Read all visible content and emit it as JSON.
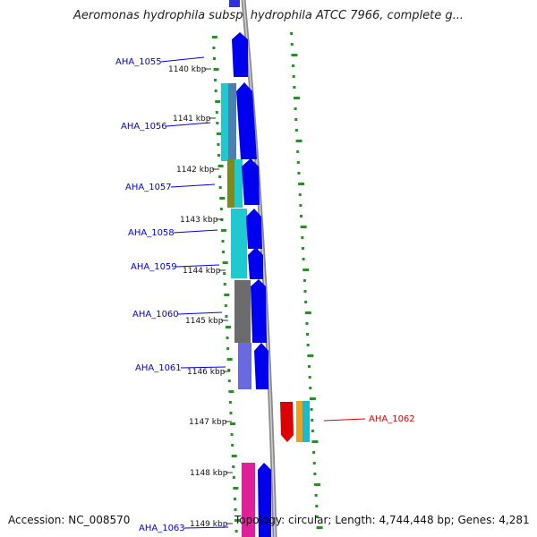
{
  "title": "Aeromonas hydrophila subsp. hydrophila ATCC 7966, complete g...",
  "footer": {
    "accession": "Accession: NC_008570",
    "summary": "Topology: circular; Length: 4,744,448 bp; Genes: 4,281"
  },
  "ticks": [
    {
      "label": "1140 kbp"
    },
    {
      "label": "1141 kbp"
    },
    {
      "label": "1142 kbp"
    },
    {
      "label": "1143 kbp"
    },
    {
      "label": "1144 kbp"
    },
    {
      "label": "1145 kbp"
    },
    {
      "label": "1146 kbp"
    },
    {
      "label": "1147 kbp"
    },
    {
      "label": "1148 kbp"
    },
    {
      "label": "1149 kbp"
    }
  ],
  "genes": [
    {
      "name": "AHA_1055",
      "strand": "forward",
      "color": "#0000cc"
    },
    {
      "name": "AHA_1056",
      "strand": "forward",
      "color": "#0000cc"
    },
    {
      "name": "AHA_1057",
      "strand": "forward",
      "color": "#0000cc"
    },
    {
      "name": "AHA_1058",
      "strand": "forward",
      "color": "#0000cc"
    },
    {
      "name": "AHA_1059",
      "strand": "forward",
      "color": "#0000cc"
    },
    {
      "name": "AHA_1060",
      "strand": "forward",
      "color": "#0000cc"
    },
    {
      "name": "AHA_1061",
      "strand": "forward",
      "color": "#0000cc"
    },
    {
      "name": "AHA_1062",
      "strand": "reverse",
      "color": "#cc0000"
    },
    {
      "name": "AHA_1063",
      "strand": "forward",
      "color": "#0000cc"
    }
  ],
  "colors": {
    "backbone": "#8a8a8a",
    "tick_dots": "#2e8b2e",
    "forward_gene": "#0000ee",
    "reverse_gene": "#dd0000"
  }
}
